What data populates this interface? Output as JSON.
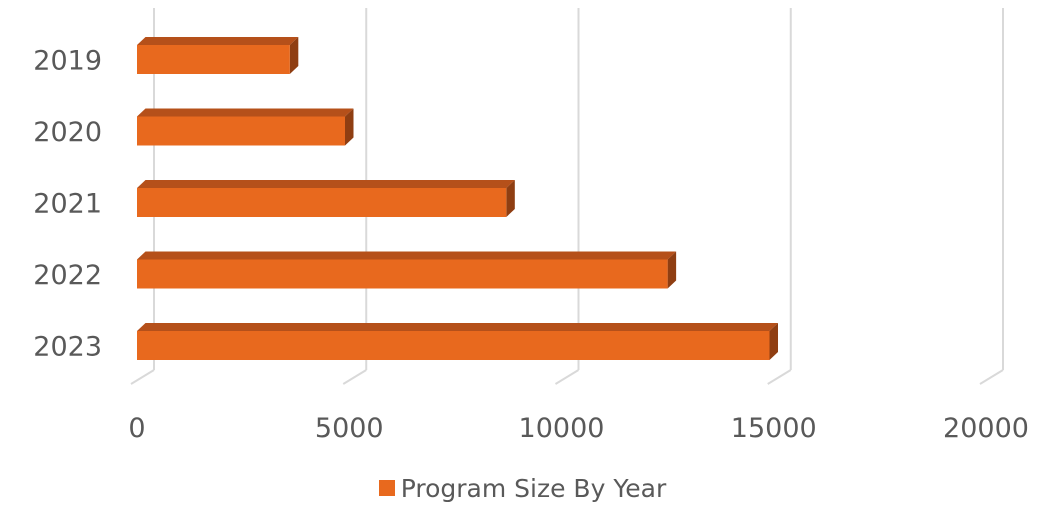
{
  "chart_data": {
    "type": "bar",
    "orientation": "horizontal",
    "style": "3d",
    "categories": [
      "2019",
      "2020",
      "2021",
      "2022",
      "2023"
    ],
    "series": [
      {
        "name": "Program Size By Year",
        "values": [
          3600,
          4900,
          8700,
          12500,
          14900
        ]
      }
    ],
    "x_ticks": [
      "0",
      "5000",
      "10000",
      "15000",
      "20000"
    ],
    "xlim": [
      0,
      20000
    ],
    "grid": true,
    "legend_position": "bottom",
    "colors": {
      "bar": "#E8691E",
      "bar_top": "#B5501A",
      "bar_side": "#8F3E12",
      "grid": "#D9D9D9",
      "text": "#595959"
    }
  }
}
